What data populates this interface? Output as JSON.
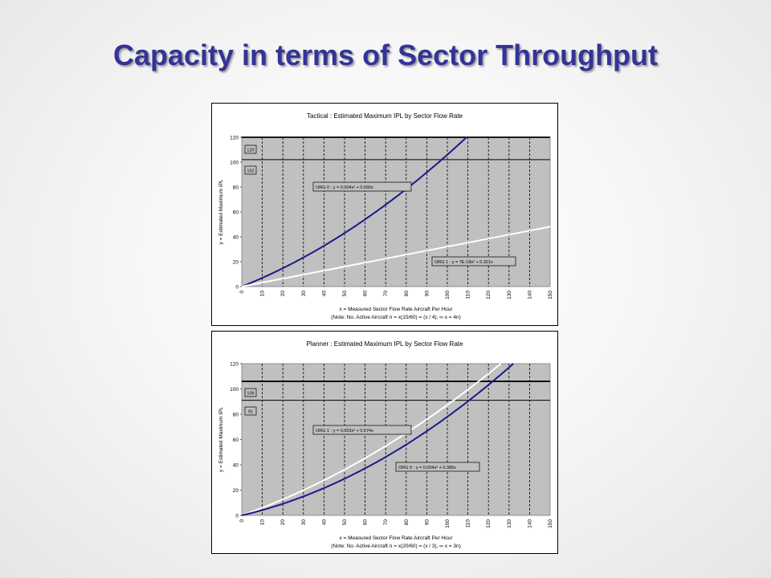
{
  "slide": {
    "title": "Capacity in terms of Sector Throughput"
  },
  "chart_data": [
    {
      "type": "line",
      "title": "Tactical : Estimated Maximum IPL by Sector Flow Rate",
      "xlabel": "x = Measured Sector Flow Rate Aircraft Per Hour",
      "xnote": "(Note: No. Active Aircraft n = x(15/60) = (x / 4),  ∞ x = 4n)",
      "ylabel": "y = Estimated Maximum IPL",
      "xlim": [
        0,
        150
      ],
      "ylim": [
        0,
        120
      ],
      "xticks": [
        "0",
        "10",
        "20",
        "30",
        "40",
        "50",
        "60",
        "70",
        "80",
        "90",
        "100",
        "110",
        "120",
        "130",
        "140",
        "150"
      ],
      "yticks": [
        "0",
        "20",
        "40",
        "60",
        "80",
        "100",
        "120"
      ],
      "grid": true,
      "reference_lines": [
        {
          "label": "120",
          "y": 120
        },
        {
          "label": "102",
          "y": 102
        }
      ],
      "series": [
        {
          "name": "ORG 0 : y = 0.004x² + 0.660x",
          "a": 0.004,
          "b": 0.66,
          "color": "#1a1a8c"
        },
        {
          "name": "ORG 1 : y = 7E-18x² + 0.321x",
          "a": 0.0,
          "b": 0.321,
          "color": "#ffffff"
        }
      ],
      "annotations": [
        "ORG 0 : y = 0.004x² + 0.660x",
        "ORG 1 : y = 7E-18x² + 0.321x"
      ]
    },
    {
      "type": "line",
      "title": "Planner : Estimated Maximum IPL by Sector Flow Rate",
      "xlabel": "x = Measured Sector Flow Rate Aircraft Per Hour",
      "xnote": "(Note: No. Active Aircraft n = x(20/60) = (x / 3),  ∞ x = 3n)",
      "ylabel": "y = Estimated Maximum IPL",
      "xlim": [
        0,
        150
      ],
      "ylim": [
        0,
        120
      ],
      "xticks": [
        "0",
        "10",
        "20",
        "30",
        "40",
        "50",
        "60",
        "70",
        "80",
        "90",
        "100",
        "110",
        "120",
        "130",
        "140",
        "150"
      ],
      "yticks": [
        "0",
        "20",
        "40",
        "60",
        "80",
        "100",
        "120"
      ],
      "grid": true,
      "reference_lines": [
        {
          "label": "106",
          "y": 106
        },
        {
          "label": "91",
          "y": 91
        }
      ],
      "series": [
        {
          "name": "ORG 1 : y = 0.003x² + 0.574x",
          "a": 0.003,
          "b": 0.574,
          "color": "#ffffff"
        },
        {
          "name": "ORG 0 : y = 0.004x² + 0.380x",
          "a": 0.004,
          "b": 0.38,
          "color": "#1a1a8c"
        }
      ],
      "annotations": [
        "ORG 1 : y = 0.003x² + 0.574x",
        "ORG 0 : y = 0.004x² + 0.380x"
      ]
    }
  ]
}
